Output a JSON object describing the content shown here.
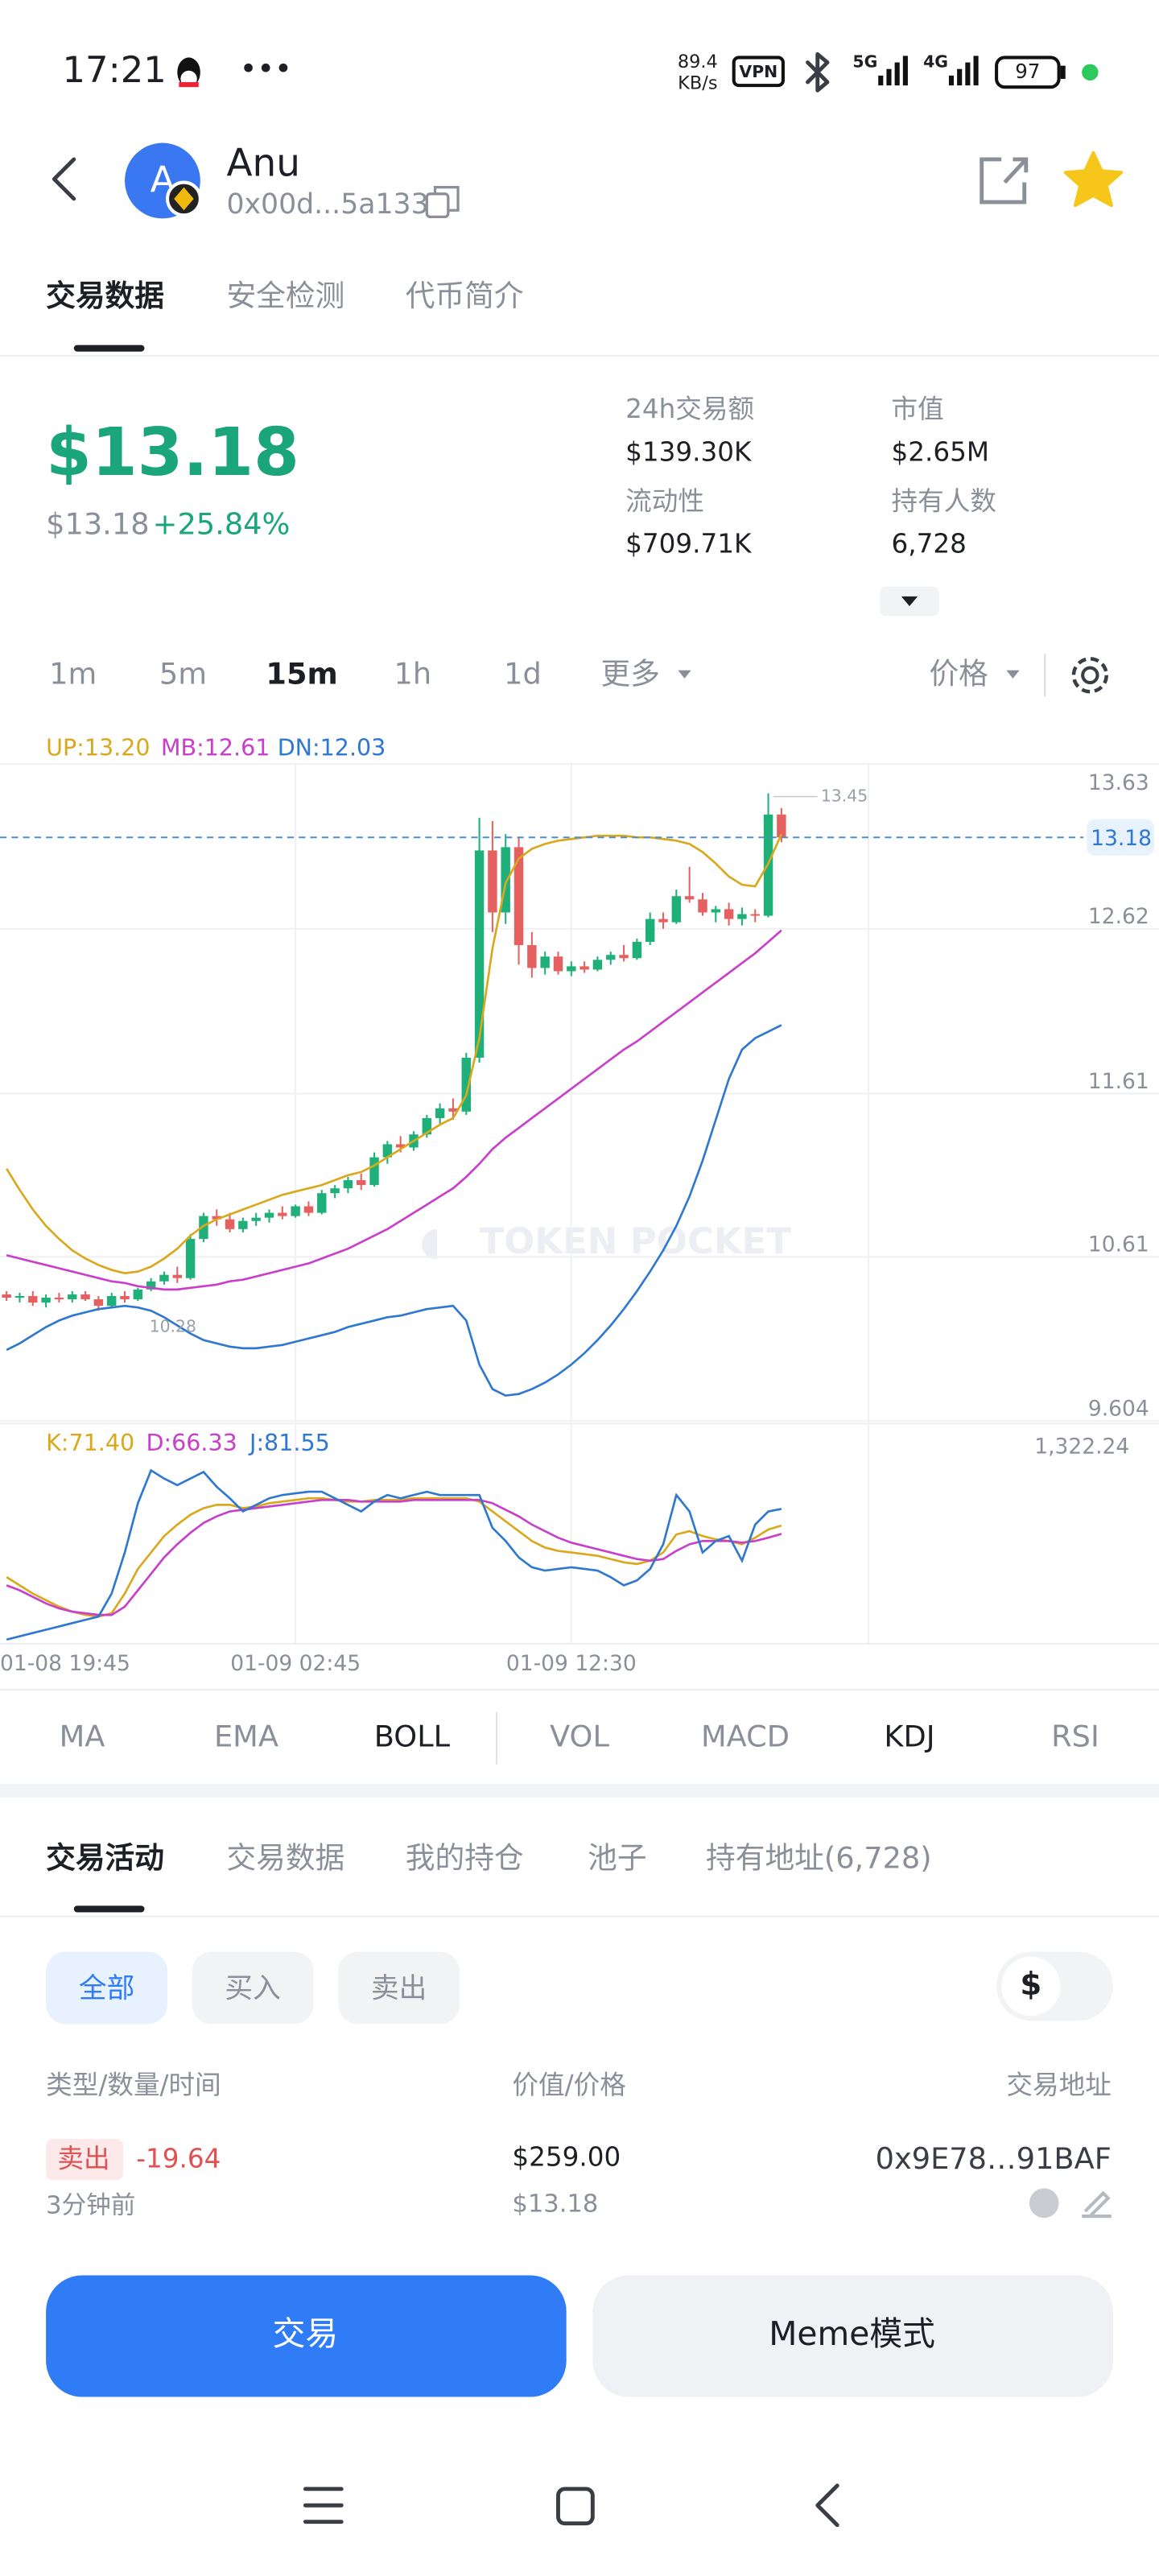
{
  "status_bar": {
    "time": "17:21",
    "net_speed": "89.4",
    "net_unit": "KB/s",
    "vpn": "VPN",
    "sig1": "5G",
    "sig2": "4G",
    "battery": "97"
  },
  "header": {
    "avatar": "A",
    "name": "Anu",
    "address": "0x00d...5a133"
  },
  "tabs": [
    "交易数据",
    "安全检测",
    "代币简介"
  ],
  "price": {
    "main": "$13.18",
    "sub": "$13.18",
    "change": "+25.84%"
  },
  "stats": [
    {
      "label": "24h交易额",
      "value": "$139.30K"
    },
    {
      "label": "市值",
      "value": "$2.65M"
    },
    {
      "label": "流动性",
      "value": "$709.71K"
    },
    {
      "label": "持有人数",
      "value": "6,728"
    }
  ],
  "intervals": [
    "1m",
    "5m",
    "15m",
    "1h",
    "1d",
    "更多"
  ],
  "price_mode": "价格",
  "chart_data": {
    "type": "candlestick",
    "watermark": "TOKEN POCKET",
    "up_color": "#1fb07a",
    "down_color": "#e5615f",
    "ylim": [
      9.604,
      13.63
    ],
    "yticks": [
      9.604,
      10.61,
      11.61,
      12.62,
      13.63
    ],
    "current_price": 13.18,
    "max_label": "13.45",
    "min_label": "10.28",
    "categories": [
      "01-08 19:45",
      null,
      null,
      null,
      null,
      null,
      null,
      null,
      null,
      null,
      null,
      null,
      null,
      null,
      null,
      null,
      null,
      null,
      null,
      null,
      null,
      null,
      "01-09 02:45",
      null,
      null,
      null,
      null,
      null,
      null,
      null,
      null,
      null,
      null,
      null,
      null,
      null,
      null,
      null,
      null,
      null,
      null,
      null,
      null,
      "01-09 12:30",
      null,
      null,
      null,
      null,
      null,
      null,
      null,
      null,
      null,
      null,
      null,
      null,
      null,
      null,
      null,
      null
    ],
    "values": [
      [
        10.38,
        10.4,
        10.34,
        10.36
      ],
      [
        10.36,
        10.39,
        10.33,
        10.37
      ],
      [
        10.37,
        10.4,
        10.31,
        10.33
      ],
      [
        10.33,
        10.38,
        10.3,
        10.36
      ],
      [
        10.36,
        10.39,
        10.33,
        10.35
      ],
      [
        10.35,
        10.4,
        10.33,
        10.38
      ],
      [
        10.38,
        10.4,
        10.34,
        10.35
      ],
      [
        10.35,
        10.37,
        10.28,
        10.31
      ],
      [
        10.31,
        10.39,
        10.3,
        10.37
      ],
      [
        10.37,
        10.4,
        10.33,
        10.35
      ],
      [
        10.35,
        10.42,
        10.34,
        10.41
      ],
      [
        10.41,
        10.48,
        10.4,
        10.46
      ],
      [
        10.46,
        10.52,
        10.44,
        10.5
      ],
      [
        10.5,
        10.55,
        10.45,
        10.48
      ],
      [
        10.48,
        10.75,
        10.47,
        10.72
      ],
      [
        10.72,
        10.88,
        10.7,
        10.86
      ],
      [
        10.86,
        10.9,
        10.8,
        10.84
      ],
      [
        10.84,
        10.88,
        10.76,
        10.78
      ],
      [
        10.78,
        10.85,
        10.76,
        10.83
      ],
      [
        10.83,
        10.88,
        10.8,
        10.85
      ],
      [
        10.85,
        10.9,
        10.82,
        10.88
      ],
      [
        10.88,
        10.92,
        10.84,
        10.86
      ],
      [
        10.86,
        10.93,
        10.85,
        10.92
      ],
      [
        10.92,
        10.95,
        10.86,
        10.88
      ],
      [
        10.88,
        11.02,
        10.87,
        11.0
      ],
      [
        11.0,
        11.05,
        10.97,
        11.03
      ],
      [
        11.03,
        11.1,
        11.0,
        11.08
      ],
      [
        11.08,
        11.12,
        11.02,
        11.05
      ],
      [
        11.05,
        11.25,
        11.04,
        11.22
      ],
      [
        11.22,
        11.32,
        11.18,
        11.3
      ],
      [
        11.3,
        11.35,
        11.25,
        11.28
      ],
      [
        11.28,
        11.38,
        11.26,
        11.36
      ],
      [
        11.36,
        11.48,
        11.34,
        11.46
      ],
      [
        11.46,
        11.55,
        11.42,
        11.52
      ],
      [
        11.52,
        11.58,
        11.45,
        11.5
      ],
      [
        11.5,
        11.86,
        11.48,
        11.83
      ],
      [
        11.83,
        13.3,
        11.8,
        13.1
      ],
      [
        13.1,
        13.28,
        12.6,
        12.72
      ],
      [
        12.72,
        13.2,
        12.65,
        13.12
      ],
      [
        13.12,
        13.18,
        12.4,
        12.52
      ],
      [
        12.52,
        12.6,
        12.32,
        12.38
      ],
      [
        12.38,
        12.48,
        12.34,
        12.45
      ],
      [
        12.45,
        12.48,
        12.34,
        12.36
      ],
      [
        12.36,
        12.42,
        12.33,
        12.39
      ],
      [
        12.39,
        12.42,
        12.35,
        12.37
      ],
      [
        12.37,
        12.45,
        12.36,
        12.43
      ],
      [
        12.43,
        12.48,
        12.4,
        12.46
      ],
      [
        12.46,
        12.52,
        12.42,
        12.44
      ],
      [
        12.44,
        12.56,
        12.43,
        12.54
      ],
      [
        12.54,
        12.72,
        12.52,
        12.68
      ],
      [
        12.68,
        12.72,
        12.62,
        12.66
      ],
      [
        12.66,
        12.86,
        12.65,
        12.82
      ],
      [
        12.82,
        13.0,
        12.78,
        12.8
      ],
      [
        12.8,
        12.84,
        12.7,
        12.72
      ],
      [
        12.72,
        12.76,
        12.66,
        12.74
      ],
      [
        12.74,
        12.78,
        12.64,
        12.68
      ],
      [
        12.68,
        12.75,
        12.64,
        12.71
      ],
      [
        12.71,
        12.74,
        12.66,
        12.7
      ],
      [
        12.7,
        13.45,
        12.69,
        13.32
      ],
      [
        13.32,
        13.36,
        13.15,
        13.18
      ]
    ],
    "boll": [
      {
        "label": "UP:13.20",
        "color": "#d9a81c",
        "values": [
          11.15,
          11.02,
          10.9,
          10.8,
          10.72,
          10.65,
          10.6,
          10.56,
          10.53,
          10.51,
          10.52,
          10.55,
          10.6,
          10.66,
          10.74,
          10.8,
          10.84,
          10.87,
          10.9,
          10.93,
          10.96,
          10.99,
          11.01,
          11.03,
          11.05,
          11.08,
          11.11,
          11.13,
          11.17,
          11.22,
          11.27,
          11.32,
          11.37,
          11.42,
          11.46,
          11.6,
          11.95,
          12.5,
          12.9,
          13.05,
          13.11,
          13.14,
          13.16,
          13.17,
          13.18,
          13.19,
          13.19,
          13.19,
          13.18,
          13.18,
          13.17,
          13.16,
          13.14,
          13.09,
          13.02,
          12.94,
          12.89,
          12.88,
          13.02,
          13.2
        ]
      },
      {
        "label": "MB:12.61",
        "color": "#c83fc9",
        "values": [
          10.62,
          10.6,
          10.58,
          10.56,
          10.54,
          10.52,
          10.5,
          10.48,
          10.46,
          10.45,
          10.43,
          10.42,
          10.41,
          10.41,
          10.42,
          10.43,
          10.44,
          10.46,
          10.47,
          10.49,
          10.51,
          10.53,
          10.55,
          10.57,
          10.6,
          10.63,
          10.66,
          10.7,
          10.74,
          10.78,
          10.83,
          10.88,
          10.93,
          10.98,
          11.03,
          11.1,
          11.18,
          11.27,
          11.34,
          11.4,
          11.46,
          11.52,
          11.58,
          11.64,
          11.7,
          11.76,
          11.82,
          11.88,
          11.93,
          11.99,
          12.05,
          12.11,
          12.17,
          12.23,
          12.29,
          12.35,
          12.41,
          12.47,
          12.54,
          12.61
        ]
      },
      {
        "label": "DN:12.03",
        "color": "#2f78cf",
        "values": [
          10.04,
          10.08,
          10.13,
          10.18,
          10.22,
          10.25,
          10.27,
          10.29,
          10.3,
          10.31,
          10.3,
          10.28,
          10.24,
          10.19,
          10.14,
          10.1,
          10.08,
          10.06,
          10.05,
          10.05,
          10.06,
          10.07,
          10.09,
          10.11,
          10.13,
          10.15,
          10.18,
          10.2,
          10.22,
          10.24,
          10.25,
          10.27,
          10.29,
          10.3,
          10.31,
          10.22,
          9.95,
          9.8,
          9.76,
          9.77,
          9.8,
          9.84,
          9.89,
          9.95,
          10.02,
          10.1,
          10.19,
          10.29,
          10.4,
          10.52,
          10.65,
          10.8,
          10.98,
          11.2,
          11.45,
          11.7,
          11.88,
          11.95,
          11.99,
          12.03
        ]
      }
    ],
    "kdj": {
      "scale_label": "1,322.24",
      "ylim": [
        0,
        100
      ],
      "series": [
        {
          "label": "K:71.40",
          "color": "#d9a81c",
          "values": [
            40,
            35,
            30,
            26,
            22,
            19,
            17,
            16,
            18,
            30,
            45,
            55,
            65,
            72,
            78,
            82,
            84,
            84,
            82,
            83,
            85,
            86,
            87,
            88,
            88,
            87,
            86,
            86,
            87,
            87,
            87,
            88,
            88,
            88,
            88,
            88,
            86,
            80,
            74,
            68,
            62,
            58,
            56,
            55,
            54,
            53,
            51,
            49,
            48,
            50,
            55,
            66,
            68,
            65,
            63,
            62,
            60,
            64,
            69,
            71.4
          ]
        },
        {
          "label": "D:66.33",
          "color": "#c83fc9",
          "values": [
            35,
            32,
            28,
            24,
            21,
            19,
            18,
            17,
            17,
            22,
            32,
            42,
            52,
            60,
            67,
            73,
            77,
            80,
            81,
            82,
            83,
            84,
            85,
            86,
            87,
            87,
            87,
            86,
            86,
            86,
            86,
            87,
            87,
            87,
            87,
            87,
            87,
            85,
            81,
            77,
            72,
            68,
            64,
            61,
            59,
            57,
            55,
            53,
            51,
            50,
            51,
            56,
            60,
            62,
            62,
            62,
            61,
            62,
            64,
            66.33
          ]
        },
        {
          "label": "J:81.55",
          "color": "#2f78cf",
          "values": [
            2,
            4,
            6,
            8,
            10,
            12,
            14,
            16,
            30,
            55,
            85,
            105,
            100,
            96,
            100,
            104,
            95,
            88,
            80,
            84,
            88,
            90,
            91,
            92,
            92,
            88,
            84,
            80,
            86,
            90,
            88,
            90,
            92,
            90,
            90,
            90,
            90,
            70,
            62,
            52,
            46,
            44,
            45,
            46,
            45,
            44,
            40,
            35,
            38,
            45,
            60,
            90,
            80,
            55,
            62,
            65,
            50,
            72,
            80,
            81.55
          ]
        }
      ]
    }
  },
  "indicators": [
    "MA",
    "EMA",
    "BOLL",
    "VOL",
    "MACD",
    "KDJ",
    "RSI"
  ],
  "activity_tabs": [
    "交易活动",
    "交易数据",
    "我的持仓",
    "池子",
    "持有地址(6,728)"
  ],
  "filters": [
    "全部",
    "买入",
    "卖出"
  ],
  "currency": "$",
  "table": {
    "headers": [
      "类型/数量/时间",
      "价值/价格",
      "交易地址"
    ],
    "rows": [
      {
        "type": "卖出",
        "amount": "-19.64",
        "time": "3分钟前",
        "value": "$259.00",
        "price": "$13.18",
        "address": "0x9E78…91BAF"
      }
    ]
  },
  "buttons": [
    "交易",
    "Meme模式"
  ]
}
